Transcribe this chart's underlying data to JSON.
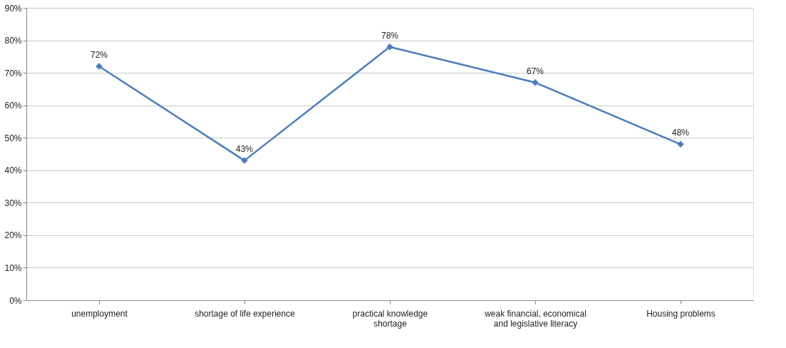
{
  "chart_data": {
    "type": "line",
    "categories": [
      "unemployment",
      "shortage of life experience",
      "practical knowledge shortage",
      "weak financial, economical and legislative literacy",
      "Housing problems"
    ],
    "series": [
      {
        "color": "#4a7ebb",
        "values": [
          72,
          43,
          78,
          67,
          48
        ],
        "value_labels": [
          "72%",
          "43%",
          "78%",
          "67%",
          "48%"
        ]
      }
    ],
    "ylim": [
      0,
      90
    ],
    "yticks": [
      {
        "value": 0,
        "label": "0%"
      },
      {
        "value": 10,
        "label": "10%"
      },
      {
        "value": 20,
        "label": "20%"
      },
      {
        "value": 30,
        "label": "30%"
      },
      {
        "value": 40,
        "label": "40%"
      },
      {
        "value": 50,
        "label": "50%"
      },
      {
        "value": 60,
        "label": "60%"
      },
      {
        "value": 70,
        "label": "70%"
      },
      {
        "value": 80,
        "label": "80%"
      },
      {
        "value": 90,
        "label": "90%"
      }
    ],
    "grid": "y",
    "marker": "diamond",
    "line_style": "solid"
  }
}
